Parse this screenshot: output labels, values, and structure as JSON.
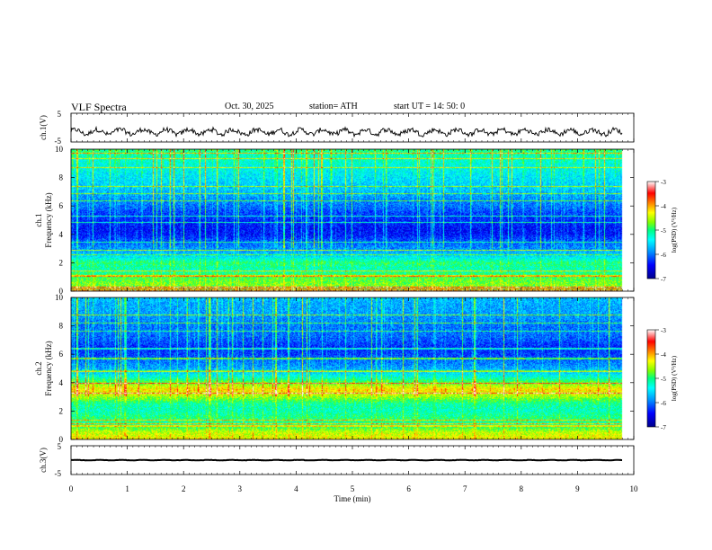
{
  "header": {
    "title": "VLF  Spectra",
    "date": "Oct. 30, 2025",
    "station": "station= ATH",
    "start": "start  UT  =   14: 50: 0"
  },
  "colorbar": {
    "label": "log(PSD) (V²/Hz)",
    "ticks": [
      "-3",
      "-4",
      "-5",
      "-6",
      "-7"
    ]
  },
  "colors": {
    "spectrum": [
      "#00008b",
      "#0000ff",
      "#0096ff",
      "#00ffff",
      "#00ff80",
      "#80ff00",
      "#ffff00",
      "#ff8000",
      "#ff0000",
      "#ffffff"
    ]
  },
  "chart_data": [
    {
      "type": "line",
      "name": "ch1-waveform",
      "ylabel": "ch.1(V)",
      "ylim": [
        -5,
        5
      ],
      "yticks": [
        "5",
        "-5"
      ],
      "xlim": [
        0,
        10
      ],
      "approx_level": -1.5,
      "approx_amplitude": 1.2
    },
    {
      "type": "heatmap",
      "name": "ch1-spectrogram",
      "ylabel_channel": "ch.1",
      "ylabel": "Frequency (kHz)",
      "ylim": [
        0,
        10
      ],
      "yticks": [
        "10",
        "8",
        "6",
        "4",
        "2",
        "0"
      ],
      "data_end_min": 9.8,
      "profile_freq_khz": [
        0,
        0.5,
        1,
        1.5,
        2,
        2.5,
        3,
        3.5,
        4,
        4.5,
        5,
        5.5,
        6,
        6.5,
        7,
        7.5,
        8,
        8.5,
        9,
        9.5,
        10
      ],
      "profile_log_psd": [
        -4.6,
        -4.7,
        -4.9,
        -5.2,
        -5.0,
        -5.6,
        -5.9,
        -6.1,
        -6.4,
        -6.4,
        -6.3,
        -6.2,
        -6.0,
        -5.9,
        -5.7,
        -5.6,
        -5.5,
        -5.4,
        -5.3,
        -5.2,
        -5.0
      ]
    },
    {
      "type": "heatmap",
      "name": "ch2-spectrogram",
      "ylabel_channel": "ch.2",
      "ylabel": "Frequency (kHz)",
      "ylim": [
        0,
        10
      ],
      "yticks": [
        "10",
        "8",
        "6",
        "4",
        "2",
        "0"
      ],
      "data_end_min": 9.8,
      "profile_freq_khz": [
        0,
        0.5,
        1,
        1.5,
        2,
        2.5,
        3,
        3.5,
        4,
        4.5,
        5,
        5.5,
        6,
        6.5,
        7,
        7.5,
        8,
        8.5,
        9,
        9.5,
        10
      ],
      "profile_log_psd": [
        -4.3,
        -4.5,
        -5.1,
        -5.0,
        -5.2,
        -5.1,
        -4.6,
        -4.2,
        -4.8,
        -5.4,
        -5.8,
        -6.0,
        -6.2,
        -6.3,
        -6.1,
        -6.0,
        -6.0,
        -5.9,
        -5.8,
        -5.8,
        -5.7
      ]
    },
    {
      "type": "line",
      "name": "ch3-waveform",
      "ylabel": "ch.3(V)",
      "ylim": [
        -5,
        5
      ],
      "yticks": [
        "5",
        "-5"
      ],
      "xlim": [
        0,
        10
      ],
      "approx_level": 0,
      "approx_amplitude": 0.1
    }
  ],
  "xaxis": {
    "label": "Time  (min)",
    "range": [
      0,
      10
    ],
    "ticks": [
      "0",
      "1",
      "2",
      "3",
      "4",
      "5",
      "6",
      "7",
      "8",
      "9",
      "10"
    ]
  }
}
